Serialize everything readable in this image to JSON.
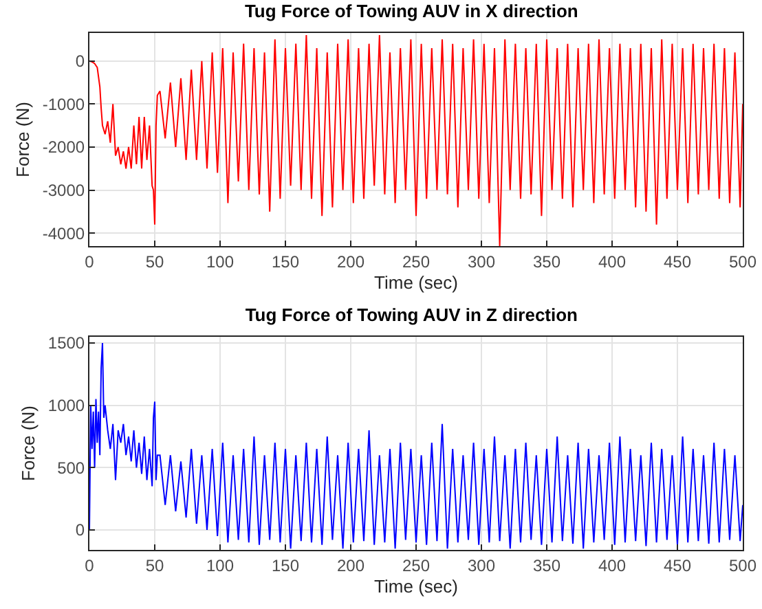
{
  "chart_data": [
    {
      "type": "line",
      "title": "Tug Force of Towing AUV in X direction",
      "xlabel": "Time (sec)",
      "ylabel": "Force (N)",
      "xlim": [
        0,
        500
      ],
      "xticks": [
        0,
        50,
        100,
        150,
        200,
        250,
        300,
        350,
        400,
        450,
        500
      ],
      "ylim": [
        -4300,
        650
      ],
      "yticks": [
        -4000,
        -3000,
        -2000,
        -1000,
        0
      ],
      "grid": true,
      "series": [
        {
          "color": "#ff0000",
          "x": [
            0,
            2,
            4,
            6,
            8,
            9,
            10,
            12,
            14,
            16,
            18,
            20,
            22,
            24,
            26,
            28,
            30,
            32,
            34,
            36,
            38,
            40,
            42,
            44,
            46,
            48,
            49,
            50,
            51,
            52,
            54,
            58,
            62,
            66,
            70,
            74,
            78,
            82,
            86,
            90,
            94,
            98,
            102,
            106,
            110,
            114,
            118,
            122,
            126,
            130,
            134,
            138,
            142,
            146,
            150,
            154,
            158,
            162,
            166,
            170,
            174,
            178,
            182,
            186,
            190,
            194,
            198,
            202,
            206,
            210,
            214,
            218,
            222,
            226,
            230,
            234,
            238,
            242,
            246,
            250,
            254,
            258,
            262,
            266,
            270,
            274,
            278,
            282,
            286,
            290,
            294,
            298,
            302,
            306,
            310,
            314,
            318,
            322,
            326,
            330,
            334,
            338,
            342,
            346,
            350,
            354,
            358,
            362,
            366,
            370,
            374,
            378,
            382,
            386,
            390,
            394,
            398,
            402,
            406,
            410,
            414,
            418,
            422,
            426,
            430,
            434,
            438,
            442,
            446,
            450,
            454,
            458,
            462,
            466,
            470,
            474,
            478,
            482,
            486,
            490,
            494,
            498,
            500
          ],
          "values": [
            0,
            -20,
            -60,
            -150,
            -600,
            -1100,
            -1500,
            -1700,
            -1400,
            -1900,
            -1000,
            -2200,
            -2000,
            -2400,
            -2100,
            -2500,
            -2000,
            -2500,
            -1500,
            -2400,
            -1300,
            -2500,
            -1300,
            -2300,
            -1500,
            -2900,
            -3000,
            -3800,
            -1500,
            -800,
            -700,
            -1800,
            -500,
            -2000,
            -400,
            -2300,
            -200,
            -2300,
            0,
            -2500,
            200,
            -2600,
            300,
            -3300,
            200,
            -2800,
            400,
            -3000,
            300,
            -3100,
            200,
            -3500,
            500,
            -3200,
            300,
            -2900,
            400,
            -3000,
            600,
            -3200,
            300,
            -3600,
            200,
            -3400,
            400,
            -3000,
            500,
            -3300,
            300,
            -3200,
            400,
            -2900,
            600,
            -3100,
            200,
            -3300,
            300,
            -3000,
            500,
            -3600,
            400,
            -3200,
            300,
            -3000,
            500,
            -3100,
            400,
            -3400,
            300,
            -3000,
            500,
            -3200,
            400,
            -3300,
            300,
            -4300,
            500,
            -3000,
            400,
            -3200,
            300,
            -3100,
            400,
            -3600,
            500,
            -3000,
            300,
            -3200,
            400,
            -3400,
            300,
            -3000,
            400,
            -3300,
            500,
            -3100,
            300,
            -3200,
            400,
            -3000,
            300,
            -3400,
            400,
            -3500,
            300,
            -3800,
            500,
            -3200,
            400,
            -3000,
            300,
            -3300,
            400,
            -3100,
            300,
            -3000,
            400,
            -3200,
            300,
            -3300,
            200,
            -3400,
            -1000
          ]
        }
      ]
    },
    {
      "type": "line",
      "title": "Tug Force of Towing AUV in Z direction",
      "xlabel": "Time (sec)",
      "ylabel": "Force (N)",
      "xlim": [
        0,
        500
      ],
      "xticks": [
        0,
        50,
        100,
        150,
        200,
        250,
        300,
        350,
        400,
        450,
        500
      ],
      "ylim": [
        -160,
        1550
      ],
      "yticks": [
        0,
        500,
        1000,
        1500
      ],
      "grid": true,
      "series": [
        {
          "color": "#0000ff",
          "x": [
            0,
            1,
            2,
            3,
            4,
            5,
            6,
            7,
            8,
            9,
            10,
            11,
            12,
            14,
            16,
            18,
            20,
            22,
            24,
            26,
            28,
            30,
            32,
            34,
            36,
            38,
            40,
            42,
            44,
            46,
            48,
            49,
            50,
            51,
            52,
            54,
            58,
            62,
            66,
            70,
            74,
            78,
            82,
            86,
            90,
            94,
            98,
            102,
            106,
            110,
            114,
            118,
            122,
            126,
            130,
            134,
            138,
            142,
            146,
            150,
            154,
            158,
            162,
            166,
            170,
            174,
            178,
            182,
            186,
            190,
            194,
            198,
            202,
            206,
            210,
            214,
            218,
            222,
            226,
            230,
            234,
            238,
            242,
            246,
            250,
            254,
            258,
            262,
            266,
            270,
            274,
            278,
            282,
            286,
            290,
            294,
            298,
            302,
            306,
            310,
            314,
            318,
            322,
            326,
            330,
            334,
            338,
            342,
            346,
            350,
            354,
            358,
            362,
            366,
            370,
            374,
            378,
            382,
            386,
            390,
            394,
            398,
            402,
            406,
            410,
            414,
            418,
            422,
            426,
            430,
            434,
            438,
            442,
            446,
            450,
            454,
            458,
            462,
            466,
            470,
            474,
            478,
            482,
            486,
            490,
            494,
            498,
            500
          ],
          "values": [
            0,
            1000,
            650,
            950,
            500,
            1050,
            700,
            950,
            600,
            1300,
            1500,
            900,
            1000,
            800,
            650,
            850,
            400,
            800,
            700,
            850,
            600,
            750,
            550,
            800,
            500,
            700,
            450,
            750,
            400,
            650,
            350,
            900,
            1030,
            400,
            600,
            600,
            200,
            600,
            150,
            550,
            100,
            650,
            50,
            600,
            0,
            650,
            -50,
            700,
            -100,
            600,
            -80,
            650,
            -100,
            750,
            -120,
            600,
            -80,
            700,
            -100,
            650,
            -150,
            600,
            -90,
            700,
            -100,
            650,
            -120,
            750,
            -80,
            600,
            -150,
            700,
            -100,
            650,
            -90,
            800,
            -120,
            600,
            -100,
            650,
            -150,
            700,
            -80,
            650,
            -100,
            600,
            -120,
            700,
            -90,
            850,
            -150,
            650,
            -100,
            600,
            -80,
            700,
            -120,
            650,
            -100,
            750,
            -90,
            600,
            -150,
            650,
            -100,
            700,
            -80,
            600,
            -120,
            650,
            -100,
            750,
            -90,
            600,
            -110,
            700,
            -150,
            650,
            -100,
            600,
            -80,
            700,
            -120,
            750,
            -100,
            650,
            -90,
            600,
            -130,
            700,
            -100,
            650,
            -80,
            600,
            -120,
            750,
            -100,
            650,
            -90,
            600,
            -110,
            700,
            -100,
            650,
            -80,
            600,
            -90,
            200
          ]
        }
      ]
    }
  ]
}
